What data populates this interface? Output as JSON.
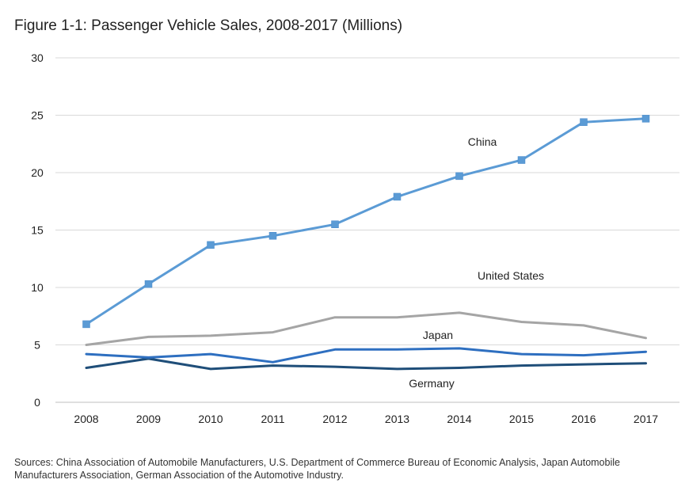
{
  "figure": {
    "title": "Figure 1-1: Passenger Vehicle Sales, 2008-2017 (Millions)",
    "sources": "Sources: China Association of Automobile Manufacturers, U.S. Department of Commerce Bureau of Economic Analysis, Japan Automobile Manufacturers Association, German Association of the Automotive Industry."
  },
  "chart_data": {
    "type": "line",
    "title": "Figure 1-1: Passenger Vehicle Sales, 2008-2017 (Millions)",
    "xlabel": "",
    "ylabel": "",
    "x": [
      "2008",
      "2009",
      "2010",
      "2011",
      "2012",
      "2013",
      "2014",
      "2015",
      "2016",
      "2017"
    ],
    "ylim": [
      0,
      30
    ],
    "yticks": [
      0,
      5,
      10,
      15,
      20,
      25,
      30
    ],
    "grid": true,
    "legend": "inline labels",
    "series": [
      {
        "name": "China",
        "color": "#5b9bd5",
        "markers": true,
        "values": [
          6.8,
          10.3,
          13.7,
          14.5,
          15.5,
          17.9,
          19.7,
          21.1,
          24.4,
          24.7
        ]
      },
      {
        "name": "United States",
        "color": "#a5a5a5",
        "markers": false,
        "values": [
          5.0,
          5.7,
          5.8,
          6.1,
          7.4,
          7.4,
          7.8,
          7.0,
          6.7,
          5.6
        ]
      },
      {
        "name": "Japan",
        "color": "#2e6fc0",
        "markers": false,
        "values": [
          4.2,
          3.9,
          4.2,
          3.5,
          4.6,
          4.6,
          4.7,
          4.2,
          4.1,
          4.4
        ]
      },
      {
        "name": "Germany",
        "color": "#1f4e79",
        "markers": false,
        "values": [
          3.0,
          3.8,
          2.9,
          3.2,
          3.1,
          2.9,
          3.0,
          3.2,
          3.3,
          3.4
        ]
      }
    ]
  }
}
